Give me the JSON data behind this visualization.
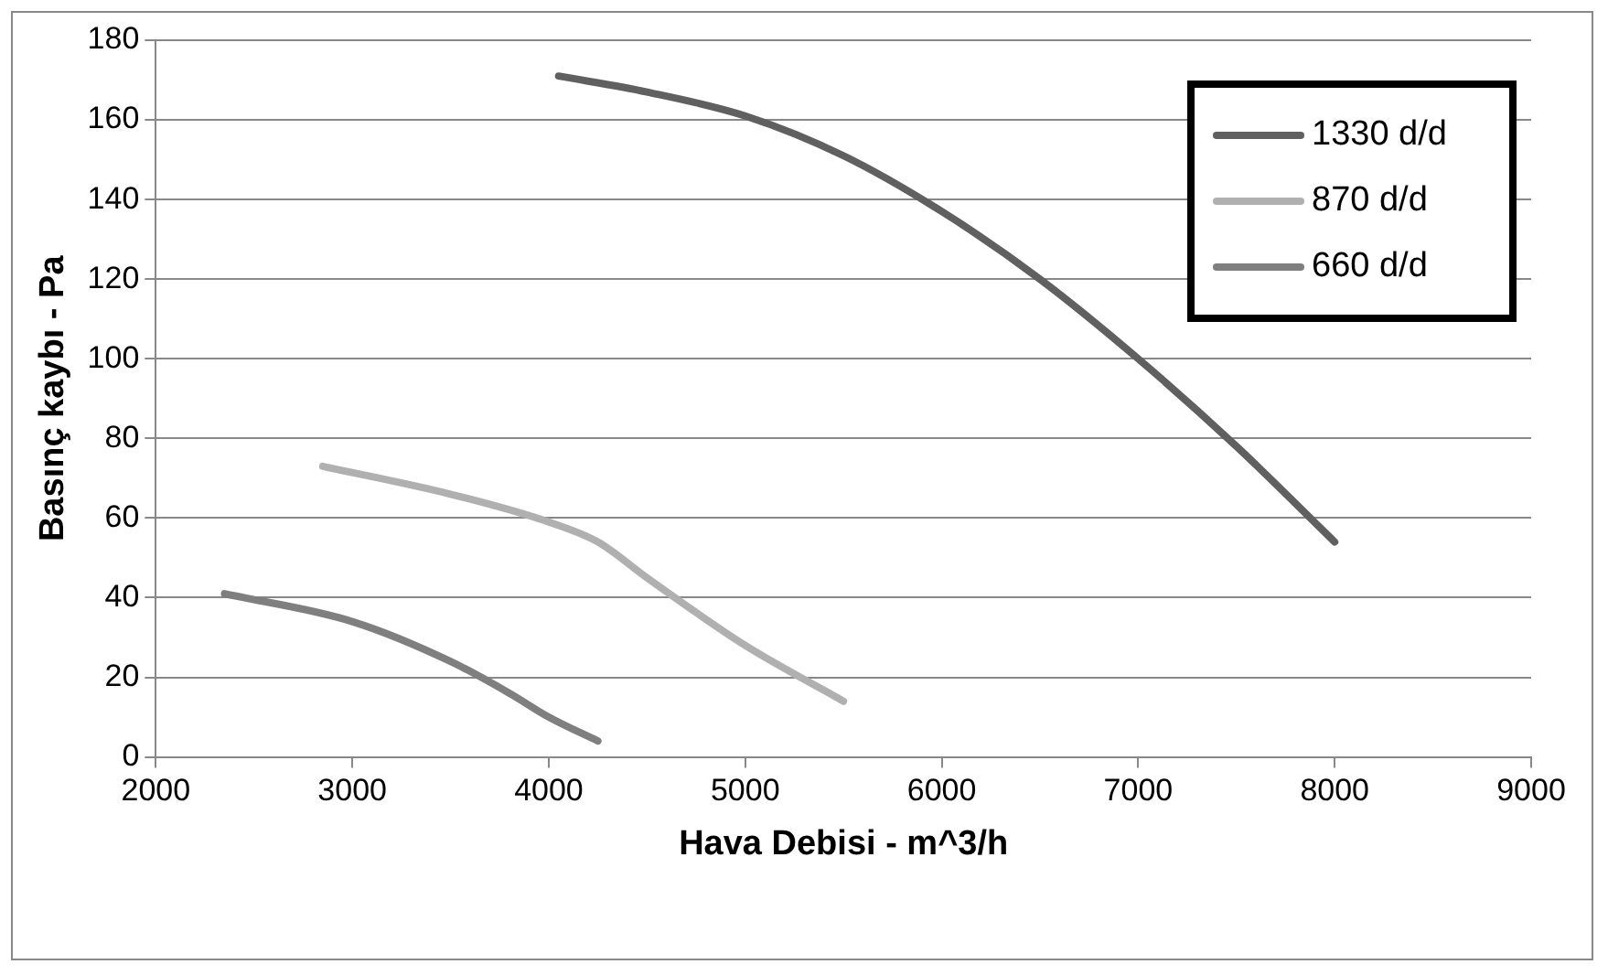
{
  "chart_data": {
    "type": "line",
    "xlabel": "Hava Debisi - m^3/h",
    "ylabel": "Basınç kaybı - Pa",
    "xlim": [
      2000,
      9000
    ],
    "xticks": [
      2000,
      3000,
      4000,
      5000,
      6000,
      7000,
      8000,
      9000
    ],
    "ylim": [
      0,
      180
    ],
    "yticks": [
      0,
      20,
      40,
      60,
      80,
      100,
      120,
      140,
      160,
      180
    ],
    "grid": "y",
    "legend": "top right",
    "marker": "none",
    "line_style": "solid",
    "series": [
      {
        "name": "1330 d/d",
        "color": "#606060",
        "x": [
          4050,
          4500,
          5000,
          5500,
          6000,
          6500,
          7000,
          7500,
          8000
        ],
        "values": [
          171,
          167,
          161,
          151,
          137,
          120,
          100,
          78,
          54
        ]
      },
      {
        "name": "870 d/d",
        "color": "#b0b0b0",
        "x": [
          2850,
          3500,
          4000,
          4250,
          4500,
          5000,
          5500
        ],
        "values": [
          73,
          66,
          59,
          54,
          45,
          28,
          14
        ]
      },
      {
        "name": "660 d/d",
        "color": "#7f7f7f",
        "x": [
          2350,
          3000,
          3500,
          3800,
          4000,
          4250
        ],
        "values": [
          41,
          34,
          24,
          16,
          10,
          4
        ]
      }
    ]
  }
}
